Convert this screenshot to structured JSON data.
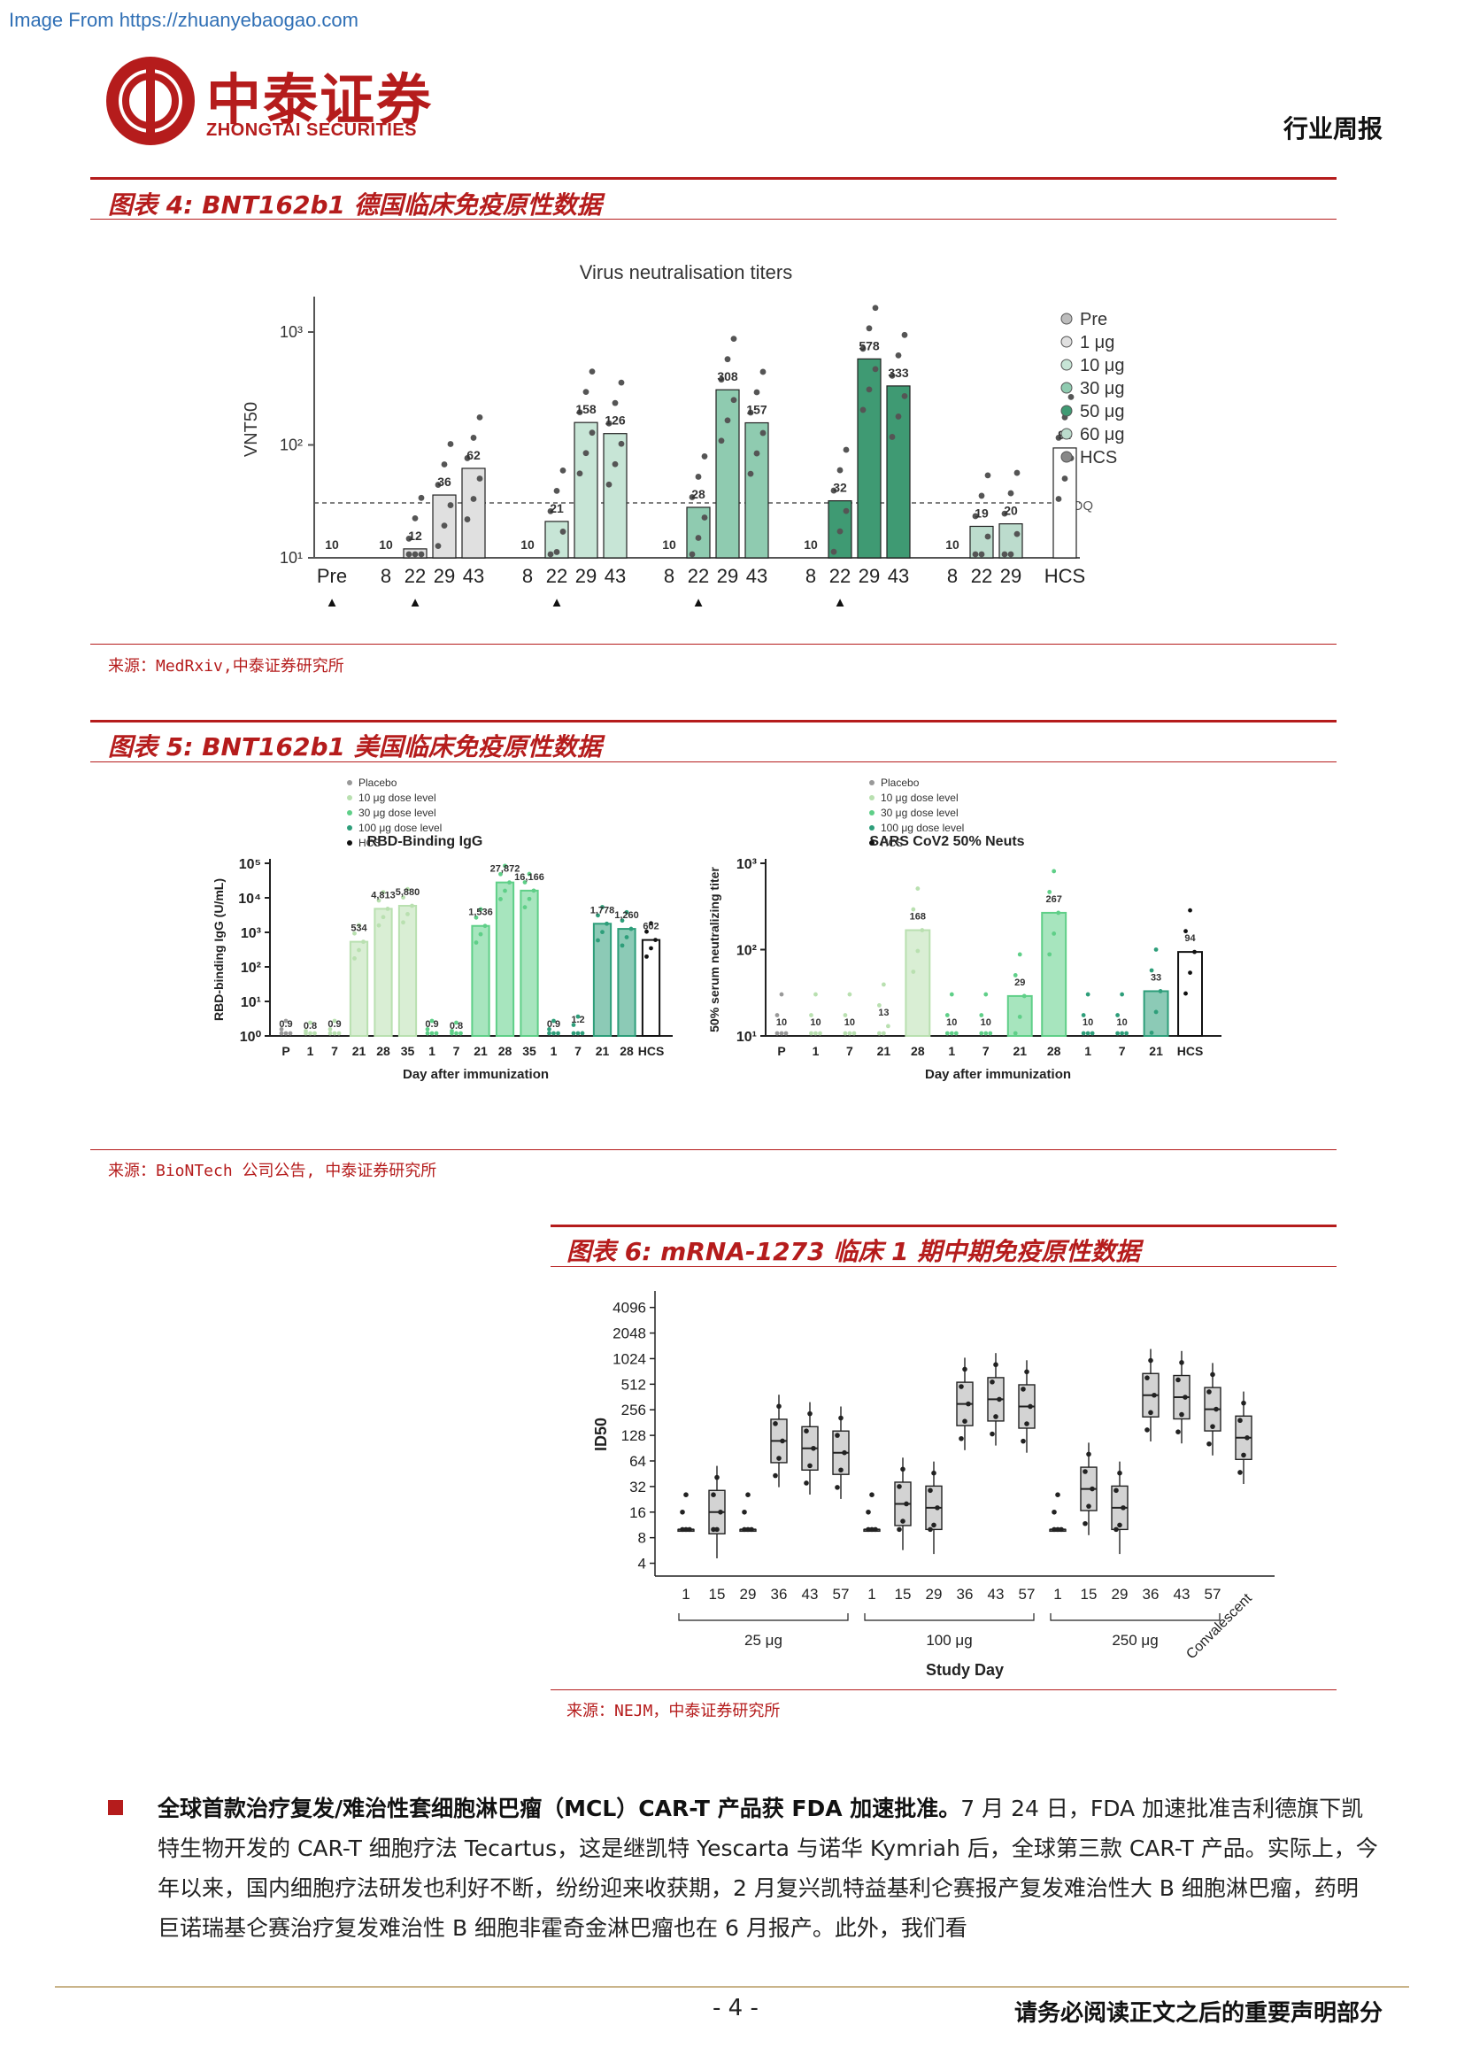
{
  "header": {
    "watermark": "Image From https://zhuanyebaogao.com",
    "brand_cn": "中泰证券",
    "brand_en": "ZHONGTAI SECURITIES",
    "report_type": "行业周报"
  },
  "figure4": {
    "title": "图表 4:   BNT162b1 德国临床免疫原性数据",
    "source": "来源：MedRxiv,中泰证券研究所",
    "chart_data": {
      "type": "bar",
      "title": "Virus neutralisation titers",
      "ylabel": "VNT50",
      "yscale": "log",
      "y_ticks": [
        "10¹",
        "10²",
        "10³"
      ],
      "categories": [
        "Pre",
        "8",
        "22",
        "29",
        "43",
        "8",
        "22",
        "29",
        "43",
        "8",
        "22",
        "29",
        "43",
        "8",
        "22",
        "29",
        "43",
        "8",
        "22",
        "29",
        "HCS"
      ],
      "values": [
        10,
        10,
        12,
        36,
        62,
        10,
        21,
        158,
        126,
        10,
        28,
        308,
        157,
        10,
        32,
        578,
        333,
        10,
        19,
        20,
        94
      ],
      "series": [
        {
          "name": "Pre",
          "color": "#bdbdbd"
        },
        {
          "name": "1 μg",
          "color": "#e0e0e0"
        },
        {
          "name": "10 μg",
          "color": "#c7e5d6"
        },
        {
          "name": "30 μg",
          "color": "#8fcbb0"
        },
        {
          "name": "50 μg",
          "color": "#3f9a73"
        },
        {
          "name": "60 μg",
          "color": "#bcdccd"
        },
        {
          "name": "HCS",
          "color": "#ffffff"
        }
      ],
      "annotation": "LLOQ",
      "markers": [
        "▲",
        "▲",
        "▲",
        "▲",
        "▲"
      ]
    }
  },
  "figure5": {
    "title": "图表 5:   BNT162b1 美国临床免疫原性数据",
    "source": "来源：BioNTech 公司公告, 中泰证券研究所",
    "chart_data": [
      {
        "type": "bar",
        "title": "RBD-Binding IgG",
        "xlabel": "Day after immunization",
        "ylabel": "RBD-binding IgG (U/mL)",
        "yscale": "log",
        "y_ticks": [
          "10⁰",
          "10¹",
          "10²",
          "10³",
          "10⁴",
          "10⁵"
        ],
        "categories": [
          "P",
          "1",
          "7",
          "21",
          "28",
          "35",
          "1",
          "7",
          "21",
          "28",
          "35",
          "1",
          "7",
          "21",
          "28",
          "HCS"
        ],
        "values": [
          0.9,
          0.8,
          0.9,
          534,
          4813,
          5880,
          0.9,
          0.8,
          1536,
          27872,
          16166,
          0.9,
          1.2,
          1778,
          1260,
          602
        ],
        "value_labels": [
          "0.9",
          "0.8",
          "0.9",
          "534",
          "4,813",
          "5,880",
          "0.9",
          "0.8",
          "1,536",
          "27,872",
          "16,166",
          "0.9",
          "1.2",
          "1,778",
          "1,260",
          "602"
        ],
        "legend": [
          "Placebo",
          "10 μg dose level",
          "30 μg dose level",
          "100 μg dose level",
          "HCS"
        ]
      },
      {
        "type": "bar",
        "title": "SARS CoV2 50% Neuts",
        "xlabel": "Day after immunization",
        "ylabel": "50% serum neutralizing titer",
        "yscale": "log",
        "y_ticks": [
          "10¹",
          "10²",
          "10³"
        ],
        "categories": [
          "P",
          "1",
          "7",
          "21",
          "28",
          "1",
          "7",
          "21",
          "28",
          "1",
          "7",
          "21",
          "HCS"
        ],
        "values": [
          10,
          10,
          10,
          13,
          168,
          10,
          10,
          29,
          267,
          10,
          10,
          33,
          94
        ],
        "legend": [
          "Placebo",
          "10 μg dose level",
          "30 μg dose level",
          "100 μg dose level",
          "HCS"
        ]
      }
    ]
  },
  "figure6": {
    "title": "图表 6:   mRNA-1273 临床 1 期中期免疫原性数据",
    "source": "来源：NEJM，中泰证券研究所",
    "chart_data": {
      "type": "box",
      "xlabel": "Study Day",
      "ylabel": "ID50",
      "yscale": "log2",
      "y_ticks": [
        "4",
        "8",
        "16",
        "32",
        "64",
        "128",
        "256",
        "512",
        "1024",
        "2048",
        "4096"
      ],
      "groups": [
        {
          "label": "25 μg",
          "days": [
            "1",
            "15",
            "29",
            "36",
            "43",
            "57"
          ],
          "medians": [
            10,
            16,
            10,
            110,
            90,
            80
          ]
        },
        {
          "label": "100 μg",
          "days": [
            "1",
            "15",
            "29",
            "36",
            "43",
            "57"
          ],
          "medians": [
            10,
            20,
            18,
            300,
            340,
            280
          ]
        },
        {
          "label": "250 μg",
          "days": [
            "1",
            "15",
            "29",
            "36",
            "43",
            "57"
          ],
          "medians": [
            10,
            30,
            18,
            380,
            360,
            260
          ]
        },
        {
          "label": "Convalescent",
          "days": [],
          "medians": [
            120
          ]
        }
      ]
    }
  },
  "body": {
    "para_bold": "全球首款治疗复发/难治性套细胞淋巴瘤（MCL）CAR-T 产品获 FDA 加速批准。",
    "para_text": "7 月 24 日，FDA 加速批准吉利德旗下凯特生物开发的 CAR-T 细胞疗法 Tecartus，这是继凯特 Yescarta 与诺华 Kymriah 后，全球第三款 CAR-T 产品。实际上，今年以来，国内细胞疗法研发也利好不断，纷纷迎来收获期，2 月复兴凯特益基利仑赛报产复发难治性大 B 细胞淋巴瘤，药明巨诺瑞基仑赛治疗复发难治性 B 细胞非霍奇金淋巴瘤也在 6 月报产。此外，我们看"
  },
  "footer": {
    "page": "- 4 -",
    "note": "请务必阅读正文之后的重要声明部分"
  }
}
